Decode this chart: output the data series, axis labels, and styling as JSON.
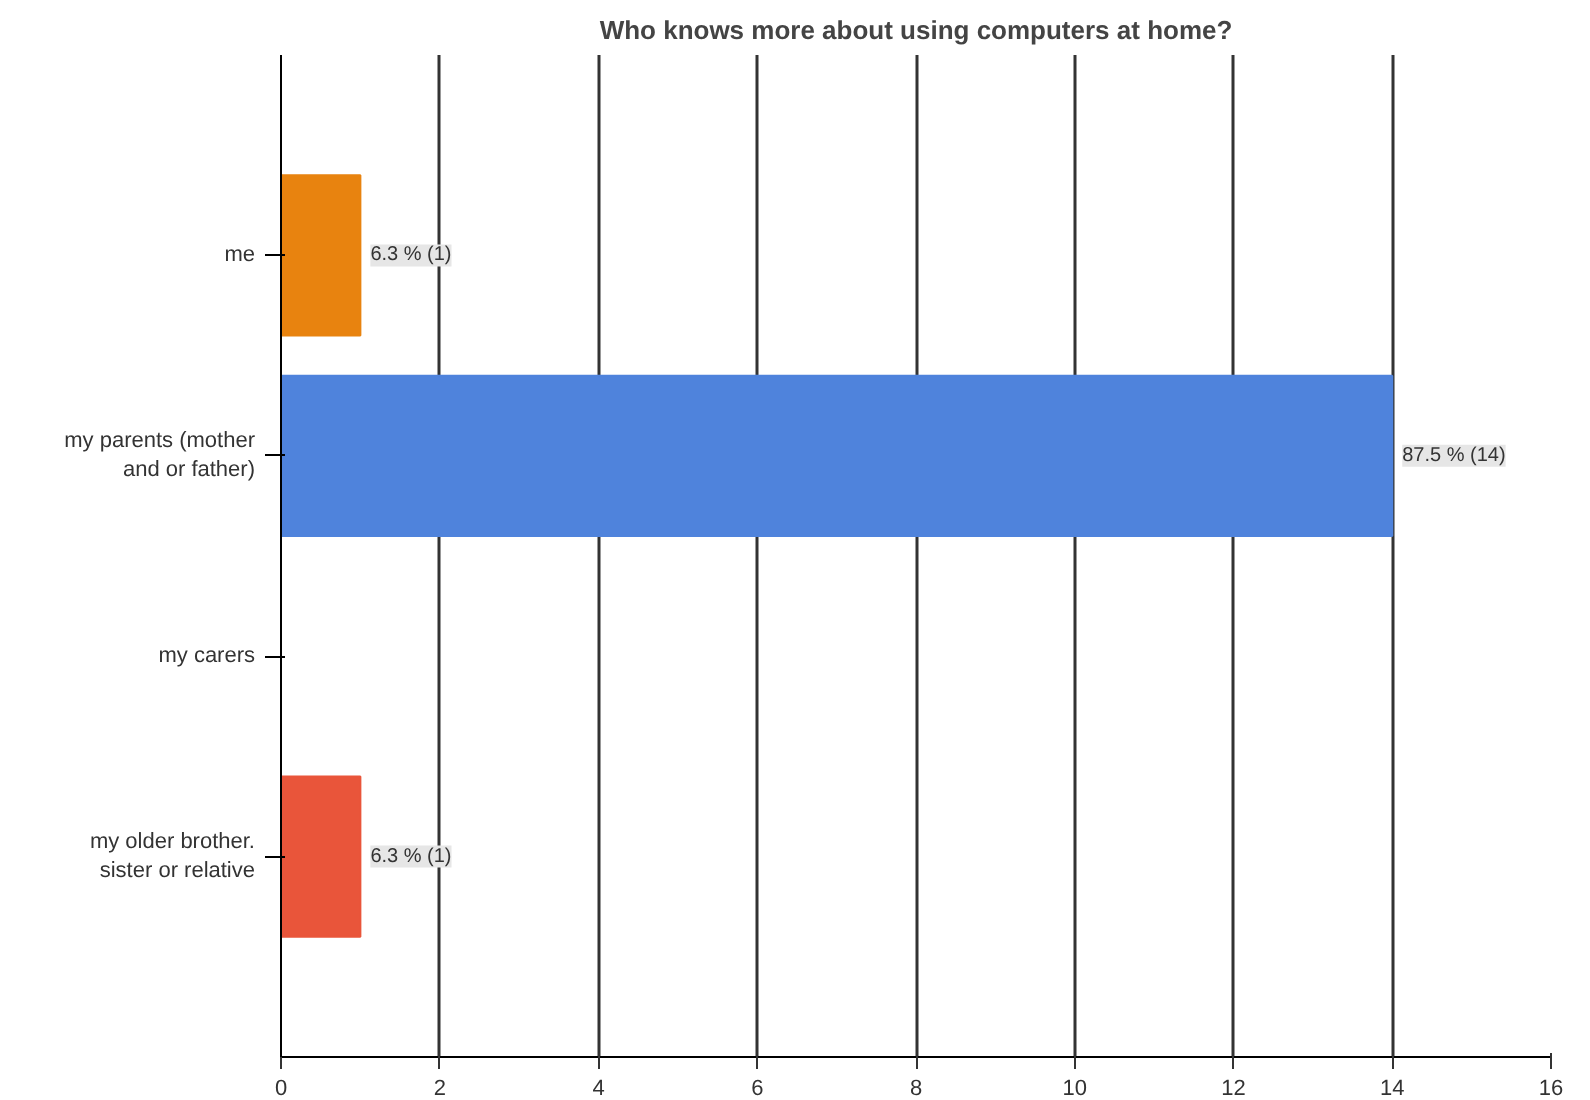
{
  "chart_data": {
    "type": "bar",
    "orientation": "horizontal",
    "title": "Who knows more about using computers at home?",
    "categories": [
      "me",
      "my parents (mother and or father)",
      "my carers",
      "my older brother. sister or relative"
    ],
    "values": [
      1,
      14,
      0,
      1
    ],
    "colors": [
      "#e8830f",
      "#4f83dc",
      "#d9d9d9",
      "#e9553a"
    ],
    "value_labels": [
      "6.3 % (1)",
      "87.5 % (14)",
      null,
      "6.3 % (1)"
    ],
    "xlim": [
      0,
      16
    ],
    "xticks": [
      0,
      2,
      4,
      6,
      8,
      10,
      12,
      14,
      16
    ],
    "grid": "x"
  }
}
